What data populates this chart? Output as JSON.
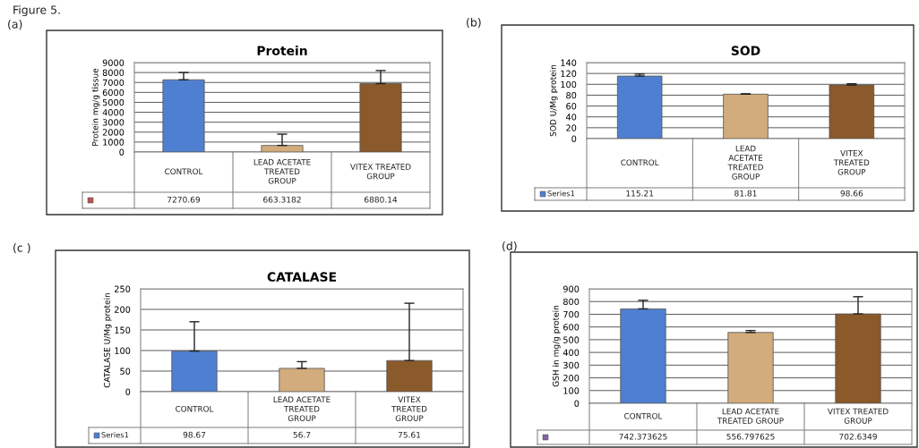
{
  "chart_data": [
    {
      "type": "bar",
      "title": "Protein",
      "ylabel": "Protein mg/g tissue",
      "categories": [
        "CONTROL",
        "LEAD ACETATE\nTREATED\nGROUP",
        "VITEX TREATED\nGROUP"
      ],
      "series": [
        {
          "color": "#c0504d",
          "colors": [
            "#4f7fd0",
            "#d2ac7c",
            "#8b5a2b"
          ],
          "values": [
            7270.69,
            663.3182,
            6880.14
          ],
          "errors": [
            [
              7270.69,
              8000
            ],
            [
              663.3182,
              1800
            ],
            [
              6880.14,
              8200
            ]
          ]
        }
      ],
      "ylim": [
        0,
        9000
      ],
      "yticks": [
        0,
        1000,
        2000,
        3000,
        4000,
        5000,
        6000,
        7000,
        8000,
        9000
      ],
      "grid": "y",
      "data_labels": true,
      "annotations": [
        "Figure 5.",
        "(a)"
      ]
    },
    {
      "type": "bar",
      "title": "SOD",
      "ylabel": "SOD U/Mg protein",
      "categories": [
        "CONTROL",
        "LEAD\nACETATE\nTREATED\nGROUP",
        "VITEX\nTREATED\nGROUP"
      ],
      "series": [
        {
          "name": "Series1",
          "color": "#4f7fd0",
          "colors": [
            "#4f7fd0",
            "#d2ac7c",
            "#8b5a2b"
          ],
          "values": [
            115.21,
            81.81,
            98.66
          ],
          "errors": [
            [
              115.21,
              119
            ],
            [
              81.81,
              82.5
            ],
            [
              98.66,
              101
            ]
          ]
        }
      ],
      "ylim": [
        0,
        140
      ],
      "yticks": [
        0,
        20,
        40,
        60,
        80,
        100,
        120,
        140
      ],
      "grid": "y",
      "data_labels": true,
      "annotations": [
        "(b)"
      ]
    },
    {
      "type": "bar",
      "title": "CATALASE",
      "ylabel": "CATALASE U/Mg protein",
      "categories": [
        "CONTROL",
        "LEAD ACETATE\nTREATED\nGROUP",
        "VITEX\nTREATED\nGROUP"
      ],
      "series": [
        {
          "name": "Series1",
          "color": "#4f7fd0",
          "colors": [
            "#4f7fd0",
            "#d2ac7c",
            "#8b5a2b"
          ],
          "values": [
            98.67,
            56.7,
            75.61
          ],
          "errors": [
            [
              98.67,
              170
            ],
            [
              56.7,
              73
            ],
            [
              75.61,
              215
            ]
          ]
        }
      ],
      "ylim": [
        0,
        250
      ],
      "yticks": [
        0,
        50,
        100,
        150,
        200,
        250
      ],
      "grid": "y",
      "data_labels": true,
      "annotations": [
        "(c )"
      ]
    },
    {
      "type": "bar",
      "ylabel": "GSH in mg/g protein",
      "categories": [
        "CONTROL",
        "LEAD ACETATE\nTREATED GROUP",
        "VITEX TREATED\nGROUP"
      ],
      "series": [
        {
          "color": "#8064a2",
          "colors": [
            "#4f7fd0",
            "#d2ac7c",
            "#8b5a2b"
          ],
          "values": [
            742.373625,
            556.797625,
            702.6349
          ],
          "errors": [
            [
              742.373625,
              810
            ],
            [
              556.797625,
              572
            ],
            [
              702.6349,
              838
            ]
          ]
        }
      ],
      "ylim": [
        0,
        900
      ],
      "yticks": [
        0,
        100,
        200,
        300,
        400,
        500,
        600,
        700,
        800,
        900
      ],
      "grid": "y",
      "data_labels": true,
      "annotations": [
        "(d)"
      ]
    }
  ]
}
